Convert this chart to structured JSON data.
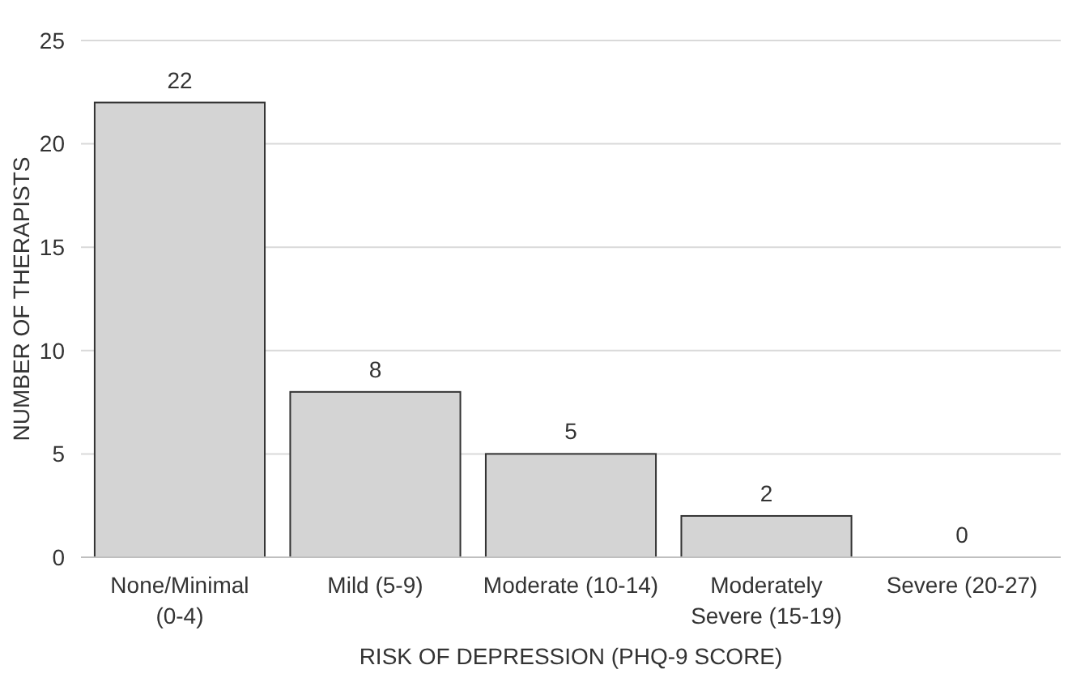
{
  "chart_data": {
    "type": "bar",
    "xlabel": "RISK OF DEPRESSION (PHQ-9 SCORE)",
    "ylabel": "NUMBER OF THERAPISTS",
    "categories": [
      "None/Minimal (0-4)",
      "Mild (5-9)",
      "Moderate (10-14)",
      "Moderately Severe (15-19)",
      "Severe (20-27)"
    ],
    "values": [
      22,
      8,
      5,
      2,
      0
    ],
    "color": "#d4d4d4",
    "ylim": [
      0,
      25
    ],
    "yticks": [
      0,
      5,
      10,
      15,
      20,
      25
    ],
    "grid": "y",
    "data_labels": true
  }
}
